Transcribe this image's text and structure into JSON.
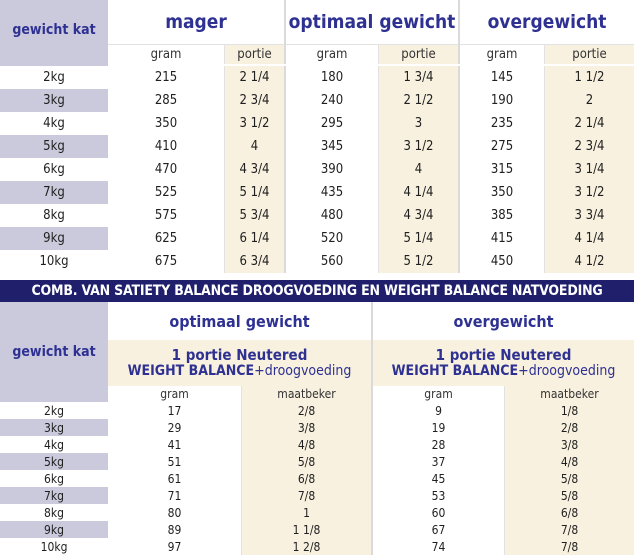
{
  "table1": {
    "corner_label": "gewicht kat",
    "groups": [
      "mager",
      "optimaal gewicht",
      "overgewicht"
    ],
    "sub_headers": [
      "gram",
      "portie"
    ],
    "rows": [
      {
        "kat": "2kg",
        "cells": [
          "215",
          "2 1/4",
          "180",
          "1 3/4",
          "145",
          "1 1/2"
        ]
      },
      {
        "kat": "3kg",
        "cells": [
          "285",
          "2 3/4",
          "240",
          "2 1/2",
          "190",
          "2"
        ]
      },
      {
        "kat": "4kg",
        "cells": [
          "350",
          "3 1/2",
          "295",
          "3",
          "235",
          "2 1/4"
        ]
      },
      {
        "kat": "5kg",
        "cells": [
          "410",
          "4",
          "345",
          "3 1/2",
          "275",
          "2 3/4"
        ]
      },
      {
        "kat": "6kg",
        "cells": [
          "470",
          "4 3/4",
          "390",
          "4",
          "315",
          "3 1/4"
        ]
      },
      {
        "kat": "7kg",
        "cells": [
          "525",
          "5 1/4",
          "435",
          "4 1/4",
          "350",
          "3 1/2"
        ]
      },
      {
        "kat": "8kg",
        "cells": [
          "575",
          "5 3/4",
          "480",
          "4 3/4",
          "385",
          "3 3/4"
        ]
      },
      {
        "kat": "9kg",
        "cells": [
          "625",
          "6 1/4",
          "520",
          "5 1/4",
          "415",
          "4 1/4"
        ]
      },
      {
        "kat": "10kg",
        "cells": [
          "675",
          "6 3/4",
          "560",
          "5 1/2",
          "450",
          "4 1/2"
        ]
      }
    ]
  },
  "banner": "COMB. VAN SATIETY BALANCE DROOGVOEDING EN WEIGHT BALANCE NATVOEDING",
  "table2": {
    "corner_label": "gewicht kat",
    "groups": [
      {
        "title": "optimaal gewicht",
        "product_line1": "1 portie Neutered",
        "product_brand": "WEIGHT BALANCE",
        "product_suffix": "+droogvoeding"
      },
      {
        "title": "overgewicht",
        "product_line1": "1 portie Neutered",
        "product_brand": "WEIGHT BALANCE",
        "product_suffix": "+droogvoeding"
      }
    ],
    "sub_headers": [
      "gram",
      "maatbeker"
    ],
    "rows": [
      {
        "kat": "2kg",
        "cells": [
          "17",
          "2/8",
          "9",
          "1/8"
        ]
      },
      {
        "kat": "3kg",
        "cells": [
          "29",
          "3/8",
          "19",
          "2/8"
        ]
      },
      {
        "kat": "4kg",
        "cells": [
          "41",
          "4/8",
          "28",
          "3/8"
        ]
      },
      {
        "kat": "5kg",
        "cells": [
          "51",
          "5/8",
          "37",
          "4/8"
        ]
      },
      {
        "kat": "6kg",
        "cells": [
          "61",
          "6/8",
          "45",
          "5/8"
        ]
      },
      {
        "kat": "7kg",
        "cells": [
          "71",
          "7/8",
          "53",
          "5/8"
        ]
      },
      {
        "kat": "8kg",
        "cells": [
          "80",
          "1",
          "60",
          "6/8"
        ]
      },
      {
        "kat": "9kg",
        "cells": [
          "89",
          "1 1/8",
          "67",
          "7/8"
        ]
      },
      {
        "kat": "10kg",
        "cells": [
          "97",
          "1 2/8",
          "74",
          "7/8"
        ]
      }
    ]
  },
  "colors": {
    "header_blue": "#2e3192",
    "label_shade": "#cbc9dc",
    "cream": "#f8f1df",
    "banner_bg": "#1f1f6b"
  }
}
